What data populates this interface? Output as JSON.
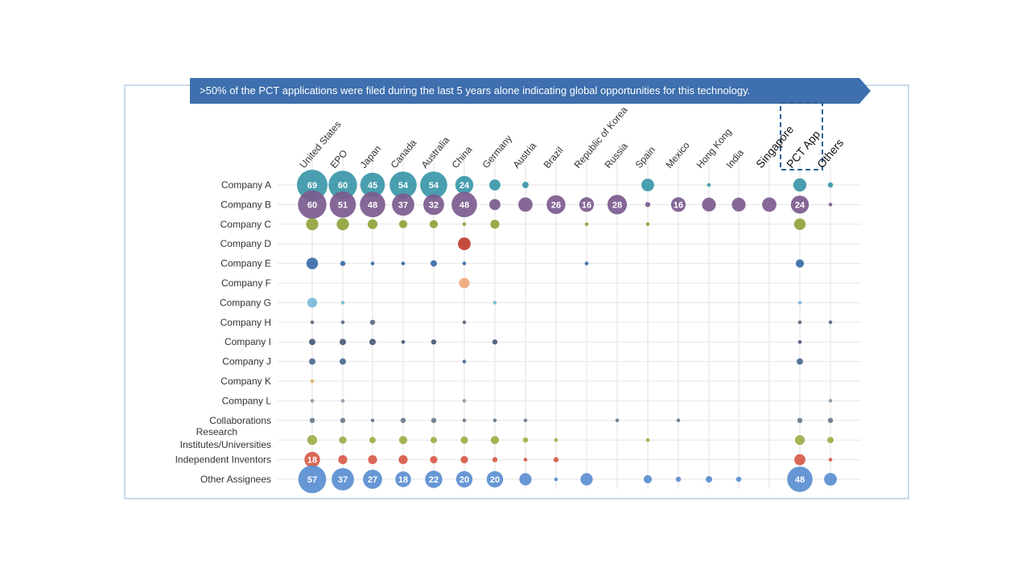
{
  "banner": {
    "text": ">50% of the PCT applications were filed during the last 5 years alone indicating global opportunities for this technology.",
    "color": "#3e6fae"
  },
  "chart_data": {
    "type": "bubble-matrix",
    "columns": [
      "United States",
      "EPO",
      "Japan",
      "Canada",
      "Australia",
      "China",
      "Germany",
      "Austria",
      "Brazil",
      "Republic of Korea",
      "Russia",
      "Spain",
      "Mexico",
      "Hong Kong",
      "India",
      "Singapore",
      "PCT App",
      "Others"
    ],
    "highlighted_column": "PCT App",
    "rows": [
      {
        "label": "Company A",
        "color": "#3a97a8",
        "values": [
          69,
          60,
          45,
          54,
          54,
          24,
          9,
          3,
          null,
          null,
          null,
          12,
          null,
          1,
          null,
          null,
          13,
          2
        ]
      },
      {
        "label": "Company B",
        "color": "#7b5b8e",
        "values": [
          60,
          51,
          48,
          37,
          32,
          48,
          9,
          15,
          26,
          16,
          28,
          2,
          16,
          14,
          14,
          15,
          24,
          1
        ]
      },
      {
        "label": "Company C",
        "color": "#8fa33a",
        "values": [
          11,
          11,
          7,
          5,
          5,
          1,
          6,
          null,
          null,
          1,
          null,
          1,
          null,
          null,
          null,
          null,
          10,
          null
        ]
      },
      {
        "label": "Company D",
        "color": "#c03b30",
        "values": [
          null,
          null,
          null,
          null,
          null,
          12,
          null,
          null,
          null,
          null,
          null,
          null,
          null,
          null,
          null,
          null,
          null,
          null
        ]
      },
      {
        "label": "Company E",
        "color": "#3a6aa8",
        "values": [
          10,
          2,
          1,
          1,
          3,
          1,
          null,
          null,
          null,
          1,
          null,
          null,
          null,
          null,
          null,
          null,
          5,
          null
        ]
      },
      {
        "label": "Company F",
        "color": "#f0a878",
        "values": [
          null,
          null,
          null,
          null,
          null,
          8,
          null,
          null,
          null,
          null,
          null,
          null,
          null,
          null,
          null,
          null,
          null,
          null
        ]
      },
      {
        "label": "Company G",
        "color": "#7ab8d8",
        "values": [
          7,
          1,
          null,
          null,
          null,
          null,
          1,
          null,
          null,
          null,
          null,
          null,
          null,
          null,
          null,
          null,
          1,
          null
        ]
      },
      {
        "label": "Company H",
        "color": "#5a6a80",
        "values": [
          1,
          1,
          2,
          null,
          null,
          1,
          null,
          null,
          null,
          null,
          null,
          null,
          null,
          null,
          null,
          null,
          1,
          1
        ]
      },
      {
        "label": "Company I",
        "color": "#4a5a78",
        "values": [
          3,
          3,
          3,
          1,
          2,
          null,
          2,
          null,
          null,
          null,
          null,
          null,
          null,
          null,
          null,
          null,
          1,
          null
        ]
      },
      {
        "label": "Company J",
        "color": "#4a6a90",
        "values": [
          3,
          3,
          null,
          null,
          null,
          1,
          null,
          null,
          null,
          null,
          null,
          null,
          null,
          null,
          null,
          null,
          3,
          null
        ]
      },
      {
        "label": "Company K",
        "color": "#e0b060",
        "values": [
          1,
          null,
          null,
          null,
          null,
          null,
          null,
          null,
          null,
          null,
          null,
          null,
          null,
          null,
          null,
          null,
          null,
          null
        ]
      },
      {
        "label": "Company L",
        "color": "#8a9aa8",
        "values": [
          1,
          1,
          null,
          null,
          null,
          1,
          null,
          null,
          null,
          null,
          null,
          null,
          null,
          null,
          null,
          null,
          null,
          1
        ]
      },
      {
        "label": "Collaborations",
        "color": "#6a7a8a",
        "values": [
          2,
          2,
          1,
          2,
          2,
          1,
          1,
          1,
          null,
          null,
          1,
          null,
          1,
          null,
          null,
          null,
          2,
          2
        ]
      },
      {
        "label": "Research Institutes/Universities",
        "color": "#9ab048",
        "values": [
          7,
          4,
          3,
          5,
          3,
          4,
          5,
          2,
          1,
          null,
          null,
          1,
          null,
          null,
          null,
          null,
          7,
          3
        ]
      },
      {
        "label": "Independent Inventors",
        "color": "#d85a48",
        "values": [
          18,
          6,
          6,
          6,
          4,
          4,
          2,
          1,
          2,
          null,
          null,
          null,
          null,
          null,
          null,
          null,
          9,
          1
        ]
      },
      {
        "label": "Other Assignees",
        "color": "#5a8ed0",
        "values": [
          57,
          37,
          27,
          18,
          22,
          20,
          20,
          11,
          1,
          11,
          null,
          5,
          2,
          3,
          2,
          null,
          48,
          12
        ]
      }
    ]
  }
}
